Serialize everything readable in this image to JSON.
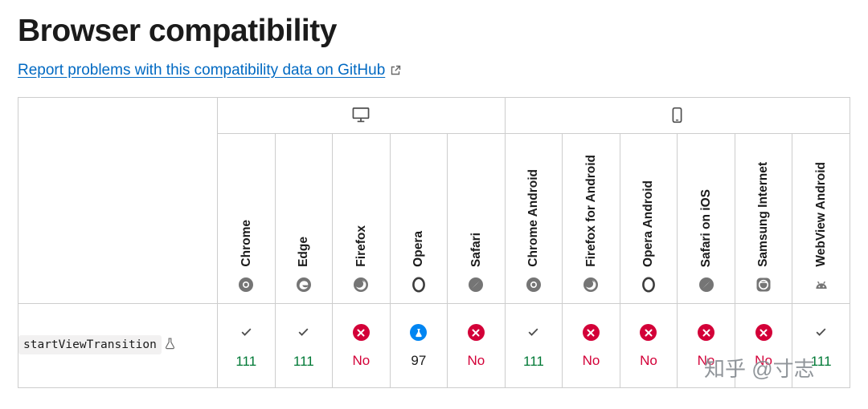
{
  "page": {
    "title": "Browser compatibility",
    "report_link": "Report problems with this compatibility data on GitHub"
  },
  "table": {
    "groups": [
      {
        "name": "desktop",
        "icon": "desktop-icon",
        "span": 5
      },
      {
        "name": "mobile",
        "icon": "mobile-icon",
        "span": 6
      }
    ],
    "browsers": [
      {
        "label": "Chrome",
        "icon": "chrome-icon"
      },
      {
        "label": "Edge",
        "icon": "edge-icon"
      },
      {
        "label": "Firefox",
        "icon": "firefox-icon"
      },
      {
        "label": "Opera",
        "icon": "opera-icon"
      },
      {
        "label": "Safari",
        "icon": "safari-icon"
      },
      {
        "label": "Chrome Android",
        "icon": "chrome-icon"
      },
      {
        "label": "Firefox for Android",
        "icon": "firefox-icon"
      },
      {
        "label": "Opera Android",
        "icon": "opera-icon"
      },
      {
        "label": "Safari on iOS",
        "icon": "safari-icon"
      },
      {
        "label": "Samsung Internet",
        "icon": "samsung-internet-icon"
      },
      {
        "label": "WebView Android",
        "icon": "webview-android-icon"
      }
    ],
    "rows": [
      {
        "feature": "startViewTransition",
        "experimental": true,
        "support": [
          {
            "status": "yes",
            "version": "111"
          },
          {
            "status": "yes",
            "version": "111"
          },
          {
            "status": "no",
            "version": "No"
          },
          {
            "status": "preview",
            "version": "97"
          },
          {
            "status": "no",
            "version": "No"
          },
          {
            "status": "yes",
            "version": "111"
          },
          {
            "status": "no",
            "version": "No"
          },
          {
            "status": "no",
            "version": "No"
          },
          {
            "status": "no",
            "version": "No"
          },
          {
            "status": "no",
            "version": "No"
          },
          {
            "status": "yes",
            "version": "111"
          }
        ]
      }
    ]
  },
  "watermark": "知乎 @寸志",
  "colors": {
    "link": "#0069c2",
    "supported": "#007936",
    "unsupported": "#d30038",
    "preview_blue": "#0085f2"
  }
}
